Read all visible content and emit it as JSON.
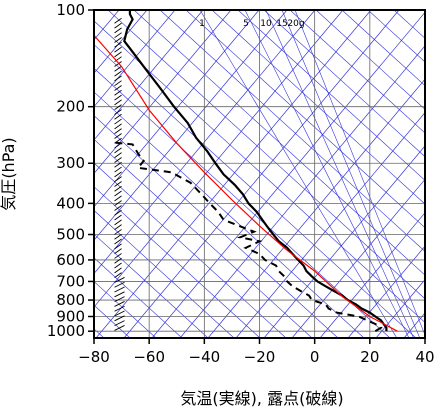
{
  "chart_data": {
    "type": "line",
    "xlabel": "気温(実線), 露点(破線)",
    "ylabel": "気圧(hPa)",
    "xlim": [
      -80,
      40
    ],
    "ylim": [
      1050,
      100
    ],
    "y_scale": "log",
    "x_ticks": [
      -80,
      -60,
      -40,
      -20,
      0,
      20,
      40
    ],
    "x_tick_labels": [
      "−80",
      "−60",
      "−40",
      "−20",
      "0",
      "20",
      "40"
    ],
    "y_ticks": [
      1000,
      900,
      800,
      700,
      600,
      500,
      400,
      300,
      200,
      100
    ],
    "y_tick_labels": [
      "1000",
      "900",
      "800",
      "700",
      "600",
      "500",
      "400",
      "300",
      "200",
      "100"
    ],
    "mixing_ratio_labels": [
      "1",
      "5",
      "10",
      "15",
      "20g"
    ],
    "colors": {
      "temperature": "#000000",
      "dewpoint": "#000000",
      "parcel": "#ff0000",
      "background_lines": "#3333dd",
      "frame": "#000000"
    },
    "series": [
      {
        "style": "solid",
        "points": [
          [
            26,
            1000
          ],
          [
            26,
            975
          ],
          [
            25,
            950
          ],
          [
            24,
            925
          ],
          [
            22,
            900
          ],
          [
            20,
            875
          ],
          [
            17,
            850
          ],
          [
            15,
            825
          ],
          [
            12,
            800
          ],
          [
            10,
            775
          ],
          [
            7,
            750
          ],
          [
            4,
            725
          ],
          [
            1,
            700
          ],
          [
            -1,
            675
          ],
          [
            -3,
            650
          ],
          [
            -4,
            625
          ],
          [
            -6,
            600
          ],
          [
            -8,
            575
          ],
          [
            -10,
            550
          ],
          [
            -13,
            525
          ],
          [
            -15,
            500
          ],
          [
            -17,
            475
          ],
          [
            -19,
            450
          ],
          [
            -21,
            425
          ],
          [
            -24,
            400
          ],
          [
            -26,
            375
          ],
          [
            -29,
            350
          ],
          [
            -33,
            325
          ],
          [
            -36,
            300
          ],
          [
            -39,
            275
          ],
          [
            -43,
            250
          ],
          [
            -46,
            225
          ],
          [
            -51,
            200
          ],
          [
            -56,
            175
          ],
          [
            -62,
            150
          ],
          [
            -66,
            135
          ],
          [
            -69,
            125
          ],
          [
            -68,
            115
          ],
          [
            -66,
            107
          ],
          [
            -67,
            103
          ],
          [
            -67,
            100
          ]
        ]
      },
      {
        "style": "dashed",
        "points": [
          [
            22,
            1000
          ],
          [
            24,
            975
          ],
          [
            22,
            950
          ],
          [
            19,
            925
          ],
          [
            16,
            900
          ],
          [
            8,
            875
          ],
          [
            5,
            850
          ],
          [
            4,
            825
          ],
          [
            -1,
            800
          ],
          [
            -2,
            775
          ],
          [
            -5,
            750
          ],
          [
            -8,
            725
          ],
          [
            -10,
            700
          ],
          [
            -11,
            675
          ],
          [
            -13,
            650
          ],
          [
            -14,
            625
          ],
          [
            -18,
            600
          ],
          [
            -20,
            575
          ],
          [
            -25,
            550
          ],
          [
            -20,
            525
          ],
          [
            -27,
            510
          ],
          [
            -22,
            490
          ],
          [
            -33,
            450
          ],
          [
            -35,
            425
          ],
          [
            -38,
            400
          ],
          [
            -41,
            375
          ],
          [
            -45,
            345
          ],
          [
            -52,
            320
          ],
          [
            -64,
            310
          ],
          [
            -62,
            295
          ],
          [
            -64,
            280
          ],
          [
            -66,
            262
          ],
          [
            -74,
            258
          ]
        ]
      },
      {
        "style": "parcel",
        "points": [
          [
            30,
            1000
          ],
          [
            20,
            900
          ],
          [
            10,
            780
          ],
          [
            0,
            650
          ],
          [
            -10,
            560
          ],
          [
            -20,
            470
          ],
          [
            -30,
            390
          ],
          [
            -40,
            320
          ],
          [
            -50,
            260
          ],
          [
            -60,
            205
          ],
          [
            -70,
            150
          ],
          [
            -80,
            120
          ]
        ]
      }
    ]
  }
}
